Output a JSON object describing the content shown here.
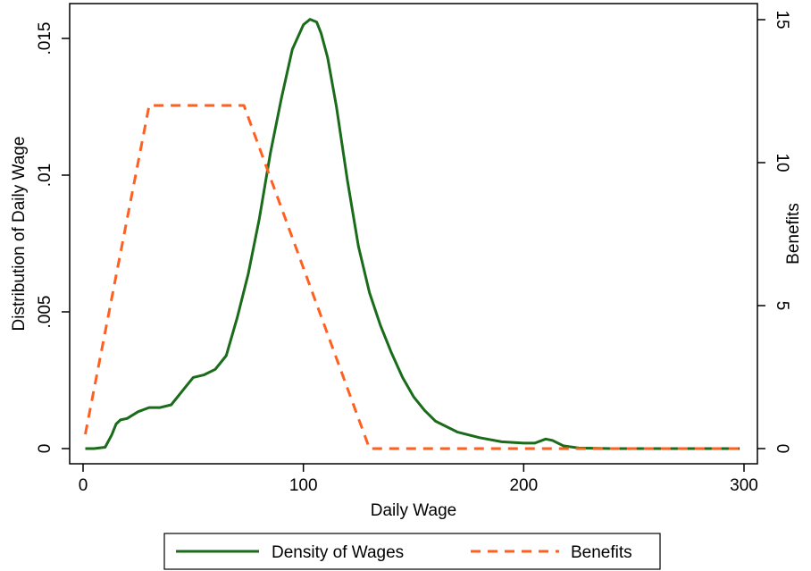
{
  "chart_data": {
    "type": "line",
    "xlabel": "Daily Wage",
    "ylabel_left": "Distribution of Daily Wage",
    "ylabel_right": "Benefits",
    "xlim": [
      0,
      300
    ],
    "ylim_left": [
      0,
      0.016
    ],
    "ylim_right": [
      0,
      15
    ],
    "xticks": [
      0,
      100,
      200,
      300
    ],
    "xtick_labels": [
      "0",
      "100",
      "200",
      "300"
    ],
    "yticks_left": [
      0,
      0.005,
      0.01,
      0.015
    ],
    "ytick_labels_left": [
      "0",
      ".005",
      ".01",
      ".015"
    ],
    "yticks_right": [
      0,
      5,
      10,
      15
    ],
    "ytick_labels_right": [
      "0",
      "5",
      "10",
      "15"
    ],
    "grid": false,
    "legend_position": "bottom",
    "series": [
      {
        "name": "Density of Wages",
        "axis": "left",
        "color": "#1a6b1a",
        "style": "solid",
        "x": [
          1,
          5,
          10,
          13,
          15,
          17,
          20,
          25,
          30,
          35,
          40,
          45,
          50,
          55,
          60,
          65,
          70,
          75,
          80,
          85,
          90,
          95,
          100,
          103,
          106,
          108,
          111,
          115,
          120,
          125,
          130,
          135,
          140,
          145,
          150,
          155,
          160,
          170,
          180,
          190,
          200,
          205,
          210,
          213,
          218,
          225,
          240,
          260,
          280,
          298
        ],
        "y": [
          0,
          0,
          5e-05,
          0.0005,
          0.0009,
          0.00105,
          0.0011,
          0.00135,
          0.0015,
          0.0015,
          0.0016,
          0.0021,
          0.0026,
          0.0027,
          0.0029,
          0.0034,
          0.0048,
          0.0064,
          0.0084,
          0.0108,
          0.0128,
          0.0146,
          0.0155,
          0.0157,
          0.0156,
          0.0152,
          0.0143,
          0.0125,
          0.0098,
          0.0074,
          0.0057,
          0.0045,
          0.0035,
          0.0026,
          0.0019,
          0.0014,
          0.001,
          0.0006,
          0.0004,
          0.00025,
          0.0002,
          0.0002,
          0.00035,
          0.0003,
          0.0001,
          2e-05,
          0,
          0,
          0,
          0
        ]
      },
      {
        "name": "Benefits",
        "axis": "right",
        "color": "#ff5f1f",
        "style": "dashed",
        "x": [
          1,
          30,
          73,
          130,
          298
        ],
        "y": [
          0.5,
          12,
          12,
          0,
          0
        ]
      }
    ]
  }
}
